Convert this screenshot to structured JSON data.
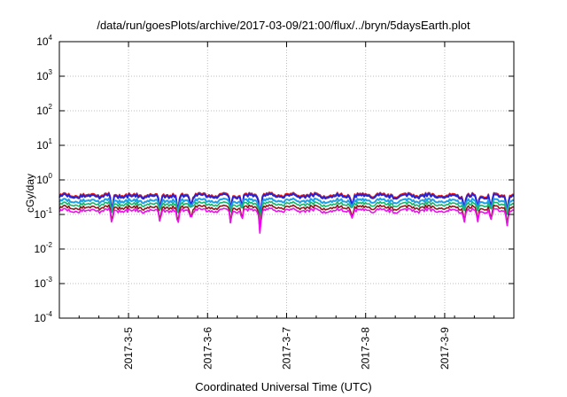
{
  "chart_data": {
    "type": "line",
    "title": "/data/run/goesPlots/archive/2017-03-09/21:00/flux/../bryn/5daysEarth.plot",
    "xlabel": "Coordinated Universal Time (UTC)",
    "ylabel": "cGy/day",
    "y_scale": "log",
    "ylim": [
      0.0001,
      10000
    ],
    "y_ticks": [
      {
        "base": "10",
        "exp": "-4",
        "value": 0.0001
      },
      {
        "base": "10",
        "exp": "-3",
        "value": 0.001
      },
      {
        "base": "10",
        "exp": "-2",
        "value": 0.01
      },
      {
        "base": "10",
        "exp": "-1",
        "value": 0.1
      },
      {
        "base": "10",
        "exp": "0",
        "value": 1
      },
      {
        "base": "10",
        "exp": "1",
        "value": 10
      },
      {
        "base": "10",
        "exp": "2",
        "value": 100
      },
      {
        "base": "10",
        "exp": "3",
        "value": 1000
      },
      {
        "base": "10",
        "exp": "4",
        "value": 10000
      }
    ],
    "xlim": [
      "2017-03-04 03:00",
      "2017-03-09 21:00"
    ],
    "x_ticks": [
      "2017-3-5",
      "2017-3-6",
      "2017-3-7",
      "2017-3-8",
      "2017-3-9"
    ],
    "grid": true,
    "legend": "none",
    "series": [
      {
        "color": "#e8191b",
        "base": 0.37,
        "x": [
          "2017-03-04 03:00",
          "2017-03-05 00:00",
          "2017-03-06 00:00",
          "2017-03-07 00:00",
          "2017-03-08 00:00",
          "2017-03-09 00:00",
          "2017-03-09 21:00"
        ],
        "y": [
          0.38,
          0.37,
          0.36,
          0.38,
          0.36,
          0.38,
          0.39
        ]
      },
      {
        "color": "#2323d8",
        "base": 0.34,
        "x": [
          "2017-03-04 03:00",
          "2017-03-05 00:00",
          "2017-03-06 00:00",
          "2017-03-07 00:00",
          "2017-03-08 00:00",
          "2017-03-09 00:00",
          "2017-03-09 21:00"
        ],
        "y": [
          0.35,
          0.34,
          0.33,
          0.35,
          0.33,
          0.35,
          0.36
        ]
      },
      {
        "color": "#1ea0e8",
        "base": 0.25,
        "x": [
          "2017-03-04 03:00",
          "2017-03-05 00:00",
          "2017-03-06 00:00",
          "2017-03-07 00:00",
          "2017-03-08 00:00",
          "2017-03-09 00:00",
          "2017-03-09 21:00"
        ],
        "y": [
          0.26,
          0.25,
          0.24,
          0.26,
          0.24,
          0.26,
          0.27
        ]
      },
      {
        "color": "#15b86a",
        "base": 0.2,
        "x": [
          "2017-03-04 03:00",
          "2017-03-05 00:00",
          "2017-03-06 00:00",
          "2017-03-07 00:00",
          "2017-03-08 00:00",
          "2017-03-09 00:00",
          "2017-03-09 21:00"
        ],
        "y": [
          0.2,
          0.2,
          0.19,
          0.2,
          0.19,
          0.2,
          0.21
        ]
      },
      {
        "color": "#8a1a1a",
        "base": 0.16,
        "x": [
          "2017-03-04 03:00",
          "2017-03-05 00:00",
          "2017-03-06 00:00",
          "2017-03-07 00:00",
          "2017-03-08 00:00",
          "2017-03-09 00:00",
          "2017-03-09 21:00"
        ],
        "y": [
          0.16,
          0.16,
          0.155,
          0.16,
          0.155,
          0.16,
          0.165
        ]
      },
      {
        "color": "#ee10ee",
        "base": 0.13,
        "x": [
          "2017-03-04 03:00",
          "2017-03-05 00:00",
          "2017-03-06 00:00",
          "2017-03-07 00:00",
          "2017-03-08 00:00",
          "2017-03-09 00:00",
          "2017-03-09 21:00"
        ],
        "y": [
          0.13,
          0.13,
          0.125,
          0.13,
          0.125,
          0.13,
          0.135
        ]
      }
    ],
    "dips": [
      {
        "x": "2017-03-04 19:00",
        "min": 0.04
      },
      {
        "x": "2017-03-05 09:30",
        "min": 0.06
      },
      {
        "x": "2017-03-05 15:00",
        "min": 0.035
      },
      {
        "x": "2017-03-05 19:00",
        "min": 0.07
      },
      {
        "x": "2017-03-06 07:00",
        "min": 0.06
      },
      {
        "x": "2017-03-06 10:30",
        "min": 0.07
      },
      {
        "x": "2017-03-06 16:00",
        "min": 0.014
      },
      {
        "x": "2017-03-07 20:00",
        "min": 0.07
      },
      {
        "x": "2017-03-09 06:00",
        "min": 0.06
      },
      {
        "x": "2017-03-09 10:00",
        "min": 0.05
      },
      {
        "x": "2017-03-09 14:00",
        "min": 0.06
      },
      {
        "x": "2017-03-09 19:00",
        "min": 0.05
      }
    ]
  }
}
